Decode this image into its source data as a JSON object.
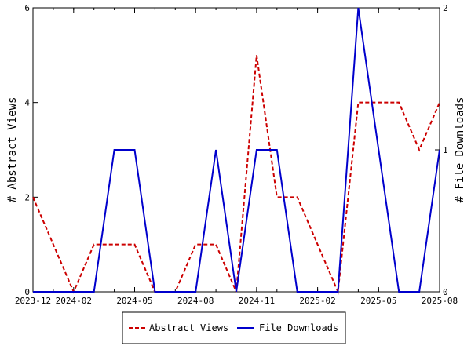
{
  "chart_data": {
    "type": "line",
    "x": [
      "2023-12",
      "2024-01",
      "2024-02",
      "2024-03",
      "2024-04",
      "2024-05",
      "2024-06",
      "2024-07",
      "2024-08",
      "2024-09",
      "2024-10",
      "2024-11",
      "2024-12",
      "2025-01",
      "2025-02",
      "2025-03",
      "2025-04",
      "2025-05",
      "2025-06",
      "2025-07",
      "2025-08"
    ],
    "x_ticks": [
      "2023-12",
      "2024-02",
      "2024-05",
      "2024-08",
      "2024-11",
      "2025-02",
      "2025-05",
      "2025-08"
    ],
    "ylabel_left": "# Abstract Views",
    "ylabel_right": "# File Downloads",
    "ylim_left": [
      0,
      6
    ],
    "ylim_right": [
      0,
      2
    ],
    "y_ticks_left": [
      "0",
      "2",
      "4",
      "6"
    ],
    "y_ticks_right": [
      "0",
      "1",
      "2"
    ],
    "grid": false,
    "legend_position": "bottom",
    "series": [
      {
        "name": "Abstract Views",
        "axis": "left",
        "color": "#cc0000",
        "dash": "dashed",
        "values": [
          2,
          1,
          0,
          1,
          1,
          1,
          0,
          0,
          1,
          1,
          0,
          5,
          2,
          2,
          1,
          0,
          4,
          4,
          4,
          3,
          4
        ]
      },
      {
        "name": "File Downloads",
        "axis": "right",
        "color": "#0000cc",
        "dash": "solid",
        "values": [
          0,
          0,
          0,
          0,
          1,
          1,
          0,
          0,
          0,
          1,
          0,
          1,
          1,
          0,
          0,
          0,
          2,
          1,
          0,
          0,
          1
        ]
      }
    ]
  }
}
